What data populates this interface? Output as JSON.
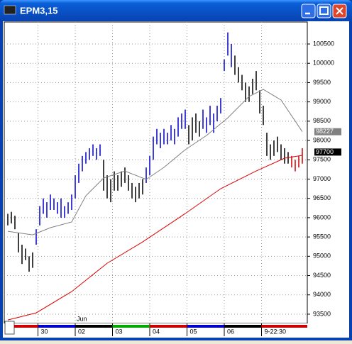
{
  "window_title": "EPM3,15",
  "chart_data": {
    "type": "bar-range",
    "month_label": "Jun",
    "xlim": [
      -1,
      84.4
    ],
    "xticks": [
      {
        "value": 8.5,
        "label": "30"
      },
      {
        "value": 19,
        "label": "02"
      },
      {
        "value": 29.5,
        "label": "03"
      },
      {
        "value": 40,
        "label": "04"
      },
      {
        "value": 50.5,
        "label": "05"
      },
      {
        "value": 61,
        "label": "06"
      },
      {
        "value": 71.5,
        "label": "9-22:30"
      }
    ],
    "ylim": [
      93260,
      101070
    ],
    "yticks": [
      93500,
      94000,
      94500,
      95000,
      95500,
      96000,
      96500,
      97000,
      97500,
      98000,
      98500,
      99000,
      99500,
      100000,
      100500
    ],
    "grid": true,
    "bars": {
      "high": [
        96100,
        96150,
        96050,
        95600,
        95300,
        95200,
        95000,
        95100,
        95700,
        96300,
        96500,
        96400,
        96600,
        96500,
        96400,
        96500,
        96300,
        96400,
        96600,
        97100,
        97400,
        97600,
        97700,
        97800,
        97900,
        97800,
        97900,
        97500,
        97100,
        97000,
        97200,
        97100,
        97200,
        97300,
        97100,
        96900,
        96800,
        96900,
        97000,
        97300,
        97600,
        98100,
        98300,
        98200,
        98300,
        98200,
        98400,
        98300,
        98600,
        98700,
        98800,
        98400,
        98600,
        98700,
        98500,
        98800,
        98600,
        98900,
        98700,
        98900,
        99100,
        100100,
        100800,
        100500,
        100200,
        99900,
        99700,
        99500,
        99400,
        99600,
        99800,
        99300,
        98900,
        98200,
        97900,
        98000,
        98100,
        97900,
        97800,
        97700,
        97600,
        97500,
        97600,
        97800
      ],
      "low": [
        95800,
        95850,
        95700,
        95100,
        94800,
        94900,
        94600,
        94700,
        95300,
        95800,
        96100,
        96000,
        96200,
        96200,
        96100,
        96000,
        96000,
        96100,
        96200,
        96500,
        96900,
        97200,
        97400,
        97500,
        97600,
        97500,
        97600,
        96700,
        96500,
        96400,
        96700,
        96700,
        96800,
        96900,
        96700,
        96500,
        96400,
        96500,
        96600,
        96900,
        97100,
        97500,
        97900,
        97800,
        97900,
        97900,
        98000,
        97900,
        98100,
        98300,
        98300,
        97900,
        98000,
        98200,
        98100,
        98300,
        98200,
        98400,
        98200,
        98500,
        98700,
        99800,
        100200,
        99900,
        99700,
        99500,
        99300,
        99000,
        99000,
        99200,
        99300,
        98700,
        98400,
        97600,
        97500,
        97600,
        97700,
        97500,
        97400,
        97400,
        97300,
        97200,
        97300,
        97400
      ],
      "colors": [
        "#000000",
        "#000000",
        "#000000",
        "#000000",
        "#000000",
        "#000000",
        "#000000",
        "#000000",
        "#0000cc",
        "#0000cc",
        "#0000cc",
        "#0000cc",
        "#0000cc",
        "#0000cc",
        "#0000cc",
        "#0000cc",
        "#0000cc",
        "#0000cc",
        "#0000cc",
        "#0000cc",
        "#0000cc",
        "#0000cc",
        "#0000cc",
        "#0000cc",
        "#0000cc",
        "#0000cc",
        "#0000cc",
        "#000000",
        "#000000",
        "#000000",
        "#000000",
        "#000000",
        "#000000",
        "#000000",
        "#000000",
        "#000000",
        "#000000",
        "#000000",
        "#000000",
        "#0000cc",
        "#0000cc",
        "#0000cc",
        "#0000cc",
        "#0000cc",
        "#0000cc",
        "#0000cc",
        "#0000cc",
        "#0000cc",
        "#0000cc",
        "#0000cc",
        "#0000cc",
        "#000000",
        "#000000",
        "#000000",
        "#000000",
        "#0000cc",
        "#0000cc",
        "#0000cc",
        "#0000cc",
        "#0000cc",
        "#0000cc",
        "#0000cc",
        "#0000cc",
        "#0000cc",
        "#000000",
        "#000000",
        "#000000",
        "#000000",
        "#000000",
        "#000000",
        "#000000",
        "#000000",
        "#000000",
        "#000000",
        "#000000",
        "#000000",
        "#000000",
        "#000000",
        "#000000",
        "#000000",
        "#cc0000",
        "#cc0000",
        "#cc0000",
        "#cc0000"
      ]
    },
    "series": [
      {
        "color": "#808080",
        "x": [
          0,
          7,
          12,
          18,
          22,
          27,
          33,
          39,
          44,
          50,
          56,
          62,
          68,
          72,
          77,
          83
        ],
        "values": [
          95648,
          95556,
          95740,
          95887,
          96567,
          97027,
          97210,
          96990,
          97302,
          97761,
          98129,
          98588,
          99140,
          99324,
          99048,
          98227
        ]
      },
      {
        "color": "#dd0000",
        "x": [
          0,
          8,
          18,
          28,
          38,
          50,
          60,
          70,
          78,
          83
        ],
        "values": [
          93350,
          93534,
          94085,
          94820,
          95372,
          96107,
          96751,
          97210,
          97541,
          97615
        ]
      }
    ],
    "price_labels": [
      98227,
      97700
    ],
    "price_label_colors": [
      "#808080",
      "#000000"
    ]
  }
}
